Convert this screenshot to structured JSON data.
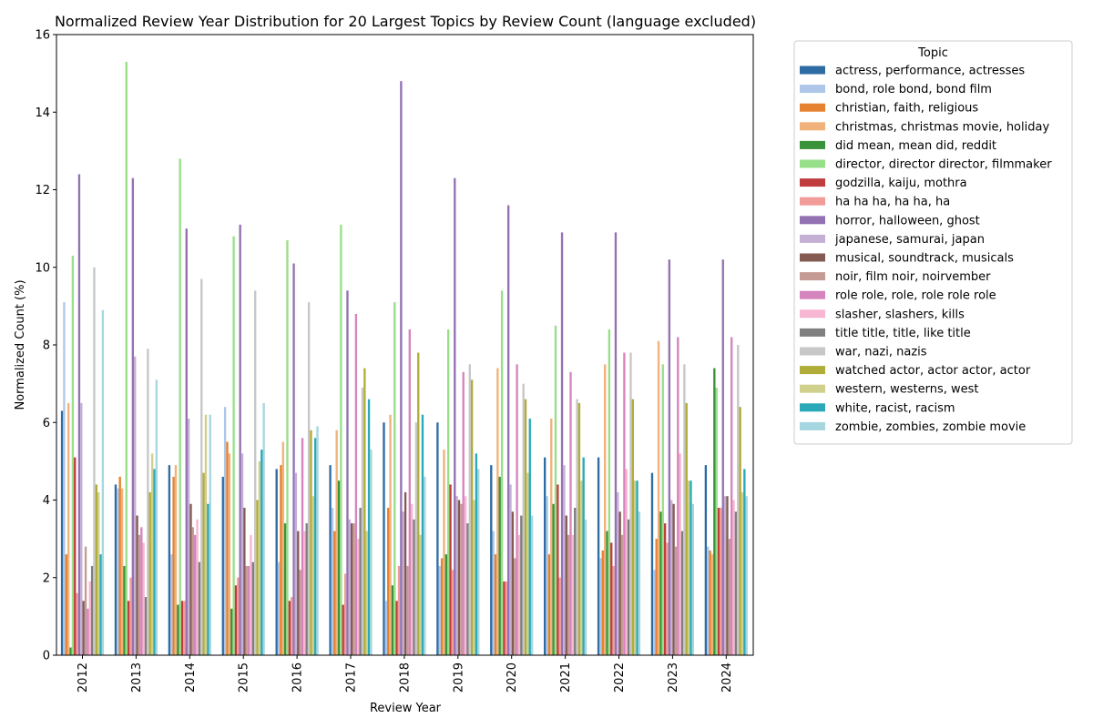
{
  "chart_data": {
    "type": "bar",
    "title": "Normalized Review Year Distribution for 20 Largest Topics by Review Count (language excluded)",
    "xlabel": "Review Year",
    "ylabel": "Normalized Count (%)",
    "ylim": [
      0,
      16
    ],
    "yticks": [
      0,
      2,
      4,
      6,
      8,
      10,
      12,
      14,
      16
    ],
    "grid": false,
    "legend": {
      "title": "Topic",
      "placement": "outside-right"
    },
    "categories": [
      "2012",
      "2013",
      "2014",
      "2015",
      "2016",
      "2017",
      "2018",
      "2019",
      "2020",
      "2021",
      "2022",
      "2023",
      "2024"
    ],
    "series": [
      {
        "name": "actress, performance, actresses",
        "color": "#2e6da4",
        "values": [
          6.3,
          4.4,
          4.9,
          4.6,
          4.8,
          4.9,
          6.0,
          6.0,
          4.9,
          5.1,
          5.1,
          4.7,
          4.9
        ]
      },
      {
        "name": "bond, role bond, bond film",
        "color": "#aec7e8",
        "values": [
          9.1,
          4.3,
          2.6,
          6.4,
          2.4,
          3.8,
          1.4,
          2.3,
          3.2,
          4.1,
          2.5,
          2.2,
          2.8
        ]
      },
      {
        "name": "christian, faith, religious",
        "color": "#e6812f",
        "values": [
          2.6,
          4.6,
          4.6,
          5.5,
          4.9,
          3.2,
          3.8,
          2.5,
          2.6,
          2.6,
          2.7,
          3.0,
          2.7
        ]
      },
      {
        "name": "christmas, christmas movie, holiday",
        "color": "#f0b27a",
        "values": [
          6.5,
          4.3,
          4.9,
          5.2,
          5.5,
          5.8,
          6.2,
          5.3,
          7.4,
          6.1,
          7.5,
          8.1,
          2.6
        ]
      },
      {
        "name": "did mean, mean did, reddit",
        "color": "#3a923a",
        "values": [
          0.2,
          2.3,
          1.3,
          1.2,
          3.4,
          4.5,
          1.8,
          2.6,
          4.6,
          3.9,
          3.2,
          3.7,
          7.4
        ]
      },
      {
        "name": "director, director director, filmmaker",
        "color": "#98df8a",
        "values": [
          10.3,
          15.3,
          12.8,
          10.8,
          10.7,
          11.1,
          9.1,
          8.4,
          9.4,
          8.5,
          8.4,
          7.5,
          6.9
        ]
      },
      {
        "name": "godzilla, kaiju, mothra",
        "color": "#c03d3e",
        "values": [
          5.1,
          1.4,
          1.4,
          1.8,
          1.4,
          1.3,
          1.4,
          4.4,
          1.9,
          4.4,
          2.9,
          3.4,
          3.8
        ]
      },
      {
        "name": "ha ha ha, ha ha, ha",
        "color": "#f19c99",
        "values": [
          1.6,
          2.0,
          1.4,
          2.0,
          1.5,
          2.1,
          2.3,
          2.2,
          1.9,
          2.0,
          2.3,
          2.9,
          3.8
        ]
      },
      {
        "name": "horror, halloween, ghost",
        "color": "#9372b2",
        "values": [
          12.4,
          12.3,
          11.0,
          11.1,
          10.1,
          9.4,
          14.8,
          12.3,
          11.6,
          10.9,
          10.9,
          10.2,
          10.2
        ]
      },
      {
        "name": "japanese, samurai, japan",
        "color": "#c5b0d5",
        "values": [
          6.5,
          7.7,
          6.1,
          5.2,
          4.7,
          3.5,
          3.7,
          4.1,
          4.4,
          4.9,
          4.2,
          4.0,
          4.1
        ]
      },
      {
        "name": "musical, soundtrack, musicals",
        "color": "#845b53",
        "values": [
          1.4,
          3.6,
          3.9,
          3.8,
          3.2,
          3.4,
          4.2,
          4.0,
          3.7,
          3.6,
          3.7,
          3.9,
          4.1
        ]
      },
      {
        "name": "noir, film noir, noirvember",
        "color": "#c49c94",
        "values": [
          2.8,
          3.1,
          3.3,
          2.3,
          2.2,
          3.4,
          2.3,
          3.9,
          2.5,
          3.1,
          3.1,
          2.8,
          3.0
        ]
      },
      {
        "name": "role role, role, role role role",
        "color": "#d684bd",
        "values": [
          1.2,
          3.3,
          3.1,
          2.3,
          5.6,
          8.8,
          8.4,
          7.3,
          7.5,
          7.3,
          7.8,
          8.2,
          8.2
        ]
      },
      {
        "name": "slasher, slashers, kills",
        "color": "#f7b6d2",
        "values": [
          1.9,
          2.9,
          3.5,
          3.1,
          3.2,
          3.0,
          3.9,
          4.1,
          3.1,
          3.1,
          4.8,
          5.2,
          4.0
        ]
      },
      {
        "name": "title title, title, like title",
        "color": "#7f7f7f",
        "values": [
          2.3,
          1.5,
          2.4,
          2.4,
          3.4,
          3.8,
          3.5,
          3.4,
          3.6,
          3.8,
          3.5,
          3.2,
          3.7
        ]
      },
      {
        "name": "war, nazi, nazis",
        "color": "#c7c7c7",
        "values": [
          10.0,
          7.9,
          9.7,
          9.4,
          9.1,
          6.9,
          6.0,
          7.5,
          7.0,
          6.6,
          7.8,
          7.5,
          8.0
        ]
      },
      {
        "name": "watched actor, actor actor, actor",
        "color": "#b1ad3a",
        "values": [
          4.4,
          4.2,
          4.7,
          4.0,
          5.8,
          7.4,
          7.8,
          7.1,
          6.6,
          6.5,
          6.6,
          6.5,
          6.4
        ]
      },
      {
        "name": "western, westerns, west",
        "color": "#d0d08c",
        "values": [
          4.2,
          5.2,
          6.2,
          5.0,
          4.1,
          3.2,
          3.1,
          4.0,
          4.7,
          4.5,
          4.5,
          4.5,
          4.2
        ]
      },
      {
        "name": "white, racist, racism",
        "color": "#2ba9b8",
        "values": [
          2.6,
          4.8,
          3.9,
          5.3,
          5.6,
          6.6,
          6.2,
          5.2,
          6.1,
          5.1,
          4.5,
          4.5,
          4.8
        ]
      },
      {
        "name": "zombie, zombies, zombie movie",
        "color": "#a6d6e0",
        "values": [
          8.9,
          7.1,
          6.2,
          6.5,
          5.9,
          5.3,
          4.6,
          4.8,
          3.6,
          3.5,
          3.7,
          3.9,
          4.1
        ]
      }
    ]
  }
}
